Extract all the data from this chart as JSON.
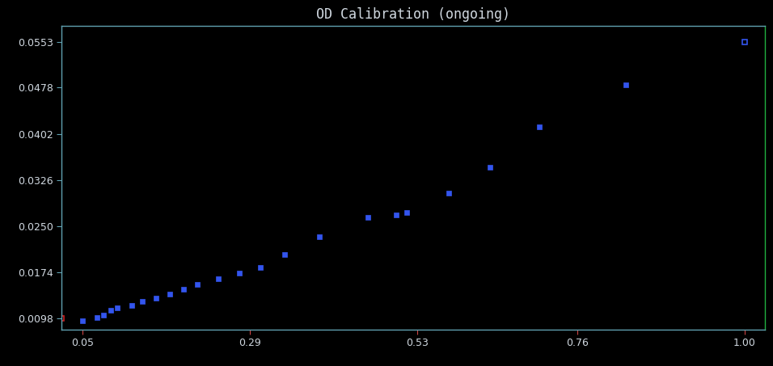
{
  "title": "OD Calibration (ongoing)",
  "background_color": "#000000",
  "text_color": "#d0d8e0",
  "dot_color_blue": "#3355ee",
  "dot_color_red": "#cc2222",
  "xlim": [
    0.02,
    1.03
  ],
  "ylim": [
    0.008,
    0.058
  ],
  "xticks": [
    0.05,
    0.29,
    0.53,
    0.76,
    1.0
  ],
  "yticks": [
    0.0098,
    0.0174,
    0.025,
    0.0326,
    0.0402,
    0.0478,
    0.0553
  ],
  "ytick_labels": [
    "0.0098",
    "0.0174",
    "0.0250",
    "0.0326",
    "0.0402",
    "0.0478",
    "0.0553"
  ],
  "xtick_labels": [
    "0.05",
    "0.29",
    "0.53",
    "0.76",
    "1.00"
  ],
  "x_data": [
    0.02,
    0.05,
    0.07,
    0.08,
    0.09,
    0.1,
    0.12,
    0.135,
    0.155,
    0.175,
    0.195,
    0.215,
    0.245,
    0.275,
    0.305,
    0.34,
    0.39,
    0.46,
    0.5,
    0.515,
    0.575,
    0.635,
    0.705,
    0.83,
    1.0
  ],
  "y_data": [
    0.0098,
    0.0094,
    0.0099,
    0.0104,
    0.0112,
    0.0116,
    0.0119,
    0.0126,
    0.0131,
    0.0138,
    0.0146,
    0.0154,
    0.0164,
    0.0173,
    0.0182,
    0.0203,
    0.0232,
    0.0265,
    0.0268,
    0.0272,
    0.0305,
    0.0347,
    0.0413,
    0.0483,
    0.0553
  ],
  "marker_size": 5,
  "title_fontsize": 12,
  "tick_fontsize": 9,
  "spine_color": "#60a0b0",
  "right_spine_color": "#20b040",
  "xtick_color": "#cc4444",
  "ytick_color": "#60a0b0"
}
